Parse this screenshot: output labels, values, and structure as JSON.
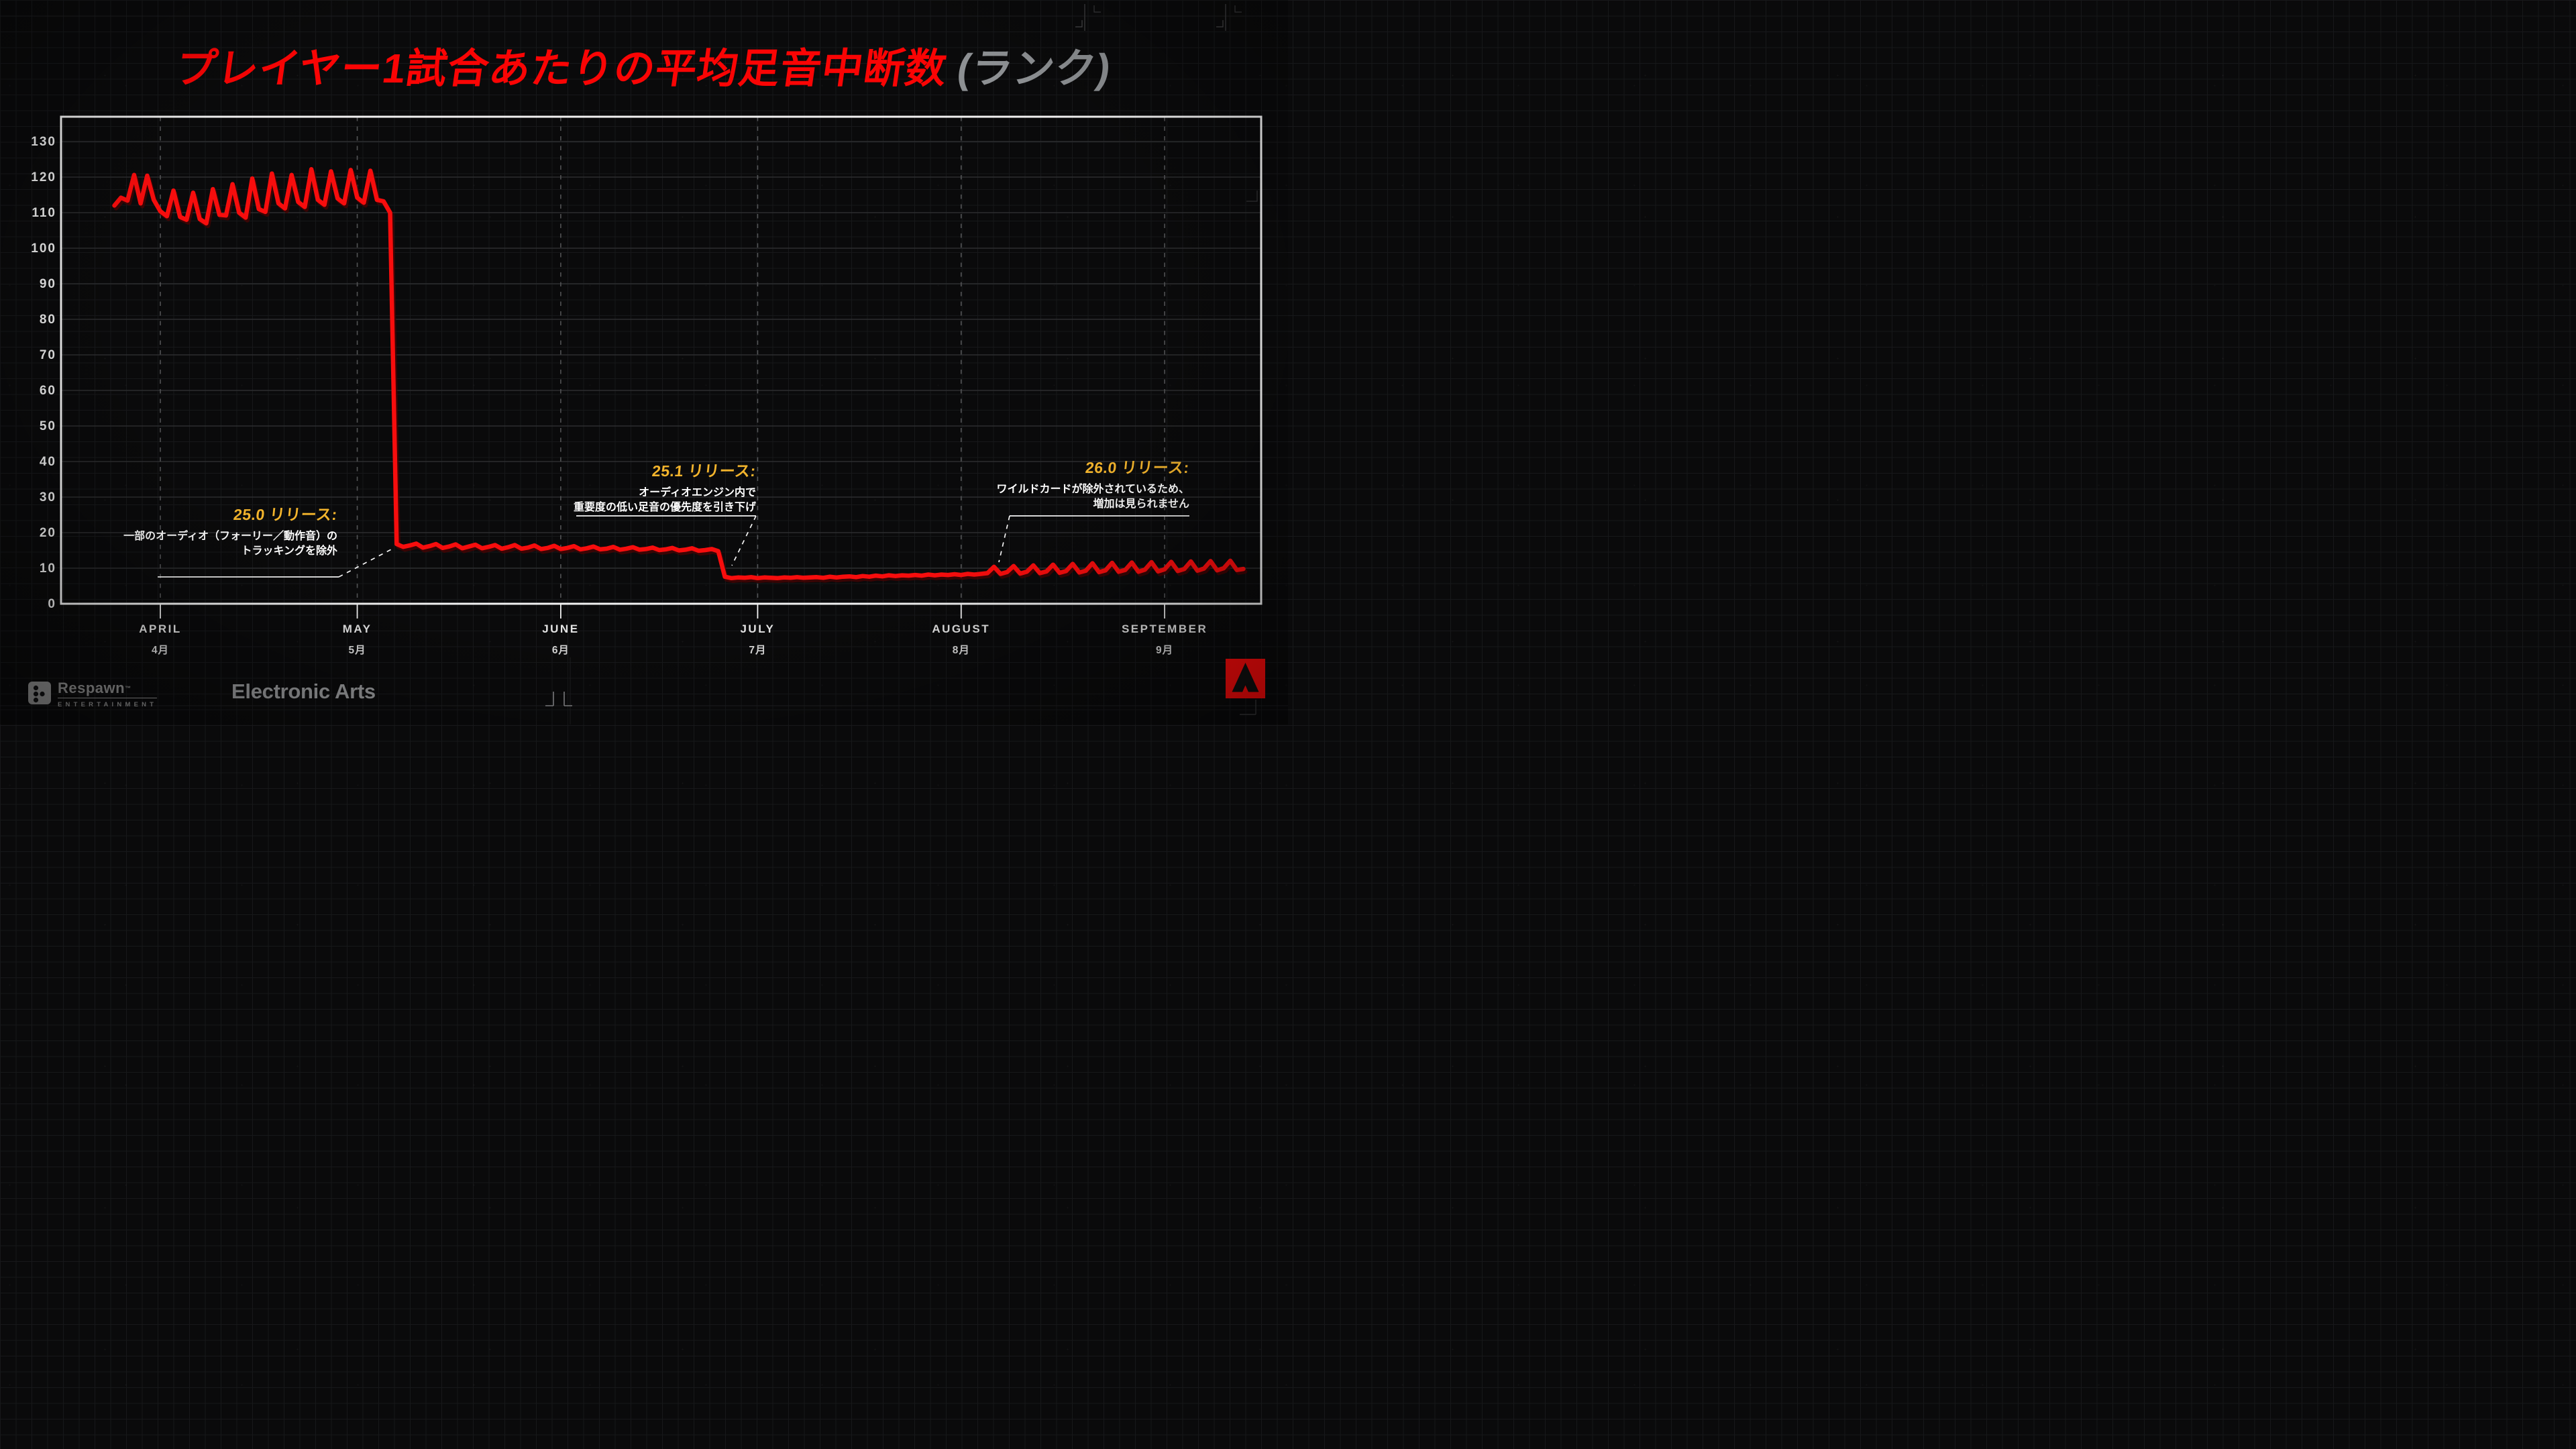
{
  "title": {
    "main": "プレイヤー1試合あたりの平均足音中断数",
    "paren": "(ランク)"
  },
  "annotations": [
    {
      "title": "25.0 リリース:",
      "line1": "一部のオーディオ（フォーリー／動作音）の",
      "line2": "トラッキングを除外"
    },
    {
      "title": "25.1 リリース:",
      "line1": "オーディオエンジン内で",
      "line2": "重要度の低い足音の優先度を引き下げ"
    },
    {
      "title": "26.0 リリース:",
      "line1": "ワイルドカードが除外されているため、",
      "line2": "増加は見られません"
    }
  ],
  "footer": {
    "respawn_name": "Respawn",
    "respawn_tm": "™",
    "respawn_sub": "ENTERTAINMENT",
    "ea_name": "Electronic Arts"
  },
  "colors": {
    "line_red": "#f70d0d",
    "line_shadow": "#4a0303",
    "title_red": "#fa0404",
    "accent_yellow": "#f3b42c",
    "paren_gray": "#8d9093",
    "logo_gray": "#8d8d8d",
    "axis_white": "#f2f2f2",
    "grid_major": "#2c2d2f",
    "grid_dashed": "#525355",
    "apex_red": "#fb0a0a"
  },
  "chart_data": {
    "type": "line",
    "title": "プレイヤー1試合あたりの平均足音中断数 (ランク)",
    "x_unit": "days_since_april_1",
    "ylim": [
      0,
      137
    ],
    "yticks": [
      0,
      10,
      20,
      30,
      40,
      50,
      60,
      70,
      80,
      90,
      100,
      110,
      120,
      130
    ],
    "grid": "horizontal decade lines; dashed vertical month lines; white L/bottom axis frame",
    "legend": "none",
    "months": [
      {
        "en": "APRIL",
        "ja": "4月",
        "day": 0
      },
      {
        "en": "MAY",
        "ja": "5月",
        "day": 30
      },
      {
        "en": "JUNE",
        "ja": "6月",
        "day": 61
      },
      {
        "en": "JULY",
        "ja": "7月",
        "day": 91
      },
      {
        "en": "AUGUST",
        "ja": "8月",
        "day": 122
      },
      {
        "en": "SEPTEMBER",
        "ja": "9月",
        "day": 153
      }
    ],
    "events": [
      {
        "day": 35,
        "label": "25.0 release drop: ~110 → ~17"
      },
      {
        "day": 85,
        "label": "25.1 release drop: ~15 → ~7.5"
      },
      {
        "day": 127,
        "label": "26.0 release: sawtooth begins, no net increase"
      }
    ],
    "series": [
      {
        "name": "平均足音中断数 (ランク)",
        "color": "#f70d0d",
        "points": [
          [
            -7,
            112
          ],
          [
            -6,
            114.2
          ],
          [
            -5,
            113.4
          ],
          [
            -4,
            120.6
          ],
          [
            -3,
            112.6
          ],
          [
            -2,
            120.4
          ],
          [
            -1,
            113.6
          ],
          [
            0,
            110.4
          ],
          [
            1,
            109.0
          ],
          [
            2,
            116.2
          ],
          [
            3,
            108.8
          ],
          [
            4,
            108.0
          ],
          [
            5,
            115.6
          ],
          [
            6,
            108.2
          ],
          [
            7,
            107.0
          ],
          [
            8,
            116.6
          ],
          [
            9,
            109.4
          ],
          [
            10,
            109.2
          ],
          [
            11,
            118.0
          ],
          [
            12,
            110.0
          ],
          [
            13,
            108.6
          ],
          [
            14,
            119.6
          ],
          [
            15,
            111.0
          ],
          [
            16,
            110.2
          ],
          [
            17,
            121.0
          ],
          [
            18,
            112.6
          ],
          [
            19,
            111.2
          ],
          [
            20,
            120.6
          ],
          [
            21,
            113.0
          ],
          [
            22,
            111.6
          ],
          [
            23,
            122.2
          ],
          [
            24,
            113.6
          ],
          [
            25,
            112.2
          ],
          [
            26,
            121.6
          ],
          [
            27,
            114.0
          ],
          [
            28,
            112.6
          ],
          [
            29,
            122.0
          ],
          [
            30,
            114.2
          ],
          [
            31,
            112.8
          ],
          [
            32,
            121.8
          ],
          [
            33,
            113.6
          ],
          [
            34,
            113.2
          ],
          [
            35,
            110.0
          ],
          [
            36,
            16.8
          ],
          [
            37,
            16.0
          ],
          [
            38,
            16.4
          ],
          [
            39,
            16.9
          ],
          [
            40,
            15.8
          ],
          [
            41,
            16.2
          ],
          [
            42,
            16.8
          ],
          [
            43,
            15.7
          ],
          [
            44,
            16.1
          ],
          [
            45,
            16.7
          ],
          [
            46,
            15.6
          ],
          [
            47,
            16.1
          ],
          [
            48,
            16.6
          ],
          [
            49,
            15.6
          ],
          [
            50,
            16.0
          ],
          [
            51,
            16.5
          ],
          [
            52,
            15.5
          ],
          [
            53,
            15.9
          ],
          [
            54,
            16.5
          ],
          [
            55,
            15.5
          ],
          [
            56,
            15.8
          ],
          [
            57,
            16.4
          ],
          [
            58,
            15.4
          ],
          [
            59,
            15.7
          ],
          [
            60,
            16.3
          ],
          [
            61,
            15.4
          ],
          [
            62,
            15.7
          ],
          [
            63,
            16.2
          ],
          [
            64,
            15.3
          ],
          [
            65,
            15.6
          ],
          [
            66,
            16.1
          ],
          [
            67,
            15.3
          ],
          [
            68,
            15.5
          ],
          [
            69,
            16.0
          ],
          [
            70,
            15.2
          ],
          [
            71,
            15.5
          ],
          [
            72,
            15.9
          ],
          [
            73,
            15.2
          ],
          [
            74,
            15.4
          ],
          [
            75,
            15.8
          ],
          [
            76,
            15.1
          ],
          [
            77,
            15.3
          ],
          [
            78,
            15.7
          ],
          [
            79,
            15.0
          ],
          [
            80,
            15.2
          ],
          [
            81,
            15.6
          ],
          [
            82,
            14.9
          ],
          [
            83,
            15.1
          ],
          [
            84,
            15.4
          ],
          [
            85,
            14.8
          ],
          [
            86,
            7.6
          ],
          [
            87,
            7.2
          ],
          [
            88,
            7.4
          ],
          [
            89,
            7.3
          ],
          [
            90,
            7.5
          ],
          [
            91,
            7.2
          ],
          [
            92,
            7.4
          ],
          [
            93,
            7.3
          ],
          [
            94,
            7.2
          ],
          [
            95,
            7.4
          ],
          [
            96,
            7.3
          ],
          [
            97,
            7.5
          ],
          [
            98,
            7.3
          ],
          [
            99,
            7.4
          ],
          [
            100,
            7.5
          ],
          [
            101,
            7.3
          ],
          [
            102,
            7.6
          ],
          [
            103,
            7.4
          ],
          [
            104,
            7.6
          ],
          [
            105,
            7.7
          ],
          [
            106,
            7.5
          ],
          [
            107,
            7.8
          ],
          [
            108,
            7.6
          ],
          [
            109,
            7.9
          ],
          [
            110,
            7.7
          ],
          [
            111,
            8.0
          ],
          [
            112,
            7.8
          ],
          [
            113,
            8.0
          ],
          [
            114,
            7.9
          ],
          [
            115,
            8.1
          ],
          [
            116,
            7.9
          ],
          [
            117,
            8.2
          ],
          [
            118,
            8.0
          ],
          [
            119,
            8.2
          ],
          [
            120,
            8.1
          ],
          [
            121,
            8.3
          ],
          [
            122,
            8.1
          ],
          [
            123,
            8.4
          ],
          [
            124,
            8.2
          ],
          [
            125,
            8.4
          ],
          [
            126,
            8.6
          ],
          [
            127,
            10.4
          ],
          [
            128,
            8.4
          ],
          [
            129,
            8.9
          ],
          [
            130,
            10.6
          ],
          [
            131,
            8.5
          ],
          [
            132,
            9.0
          ],
          [
            133,
            10.8
          ],
          [
            134,
            8.6
          ],
          [
            135,
            9.1
          ],
          [
            136,
            11.0
          ],
          [
            137,
            8.7
          ],
          [
            138,
            9.2
          ],
          [
            139,
            11.2
          ],
          [
            140,
            8.8
          ],
          [
            141,
            9.3
          ],
          [
            142,
            11.4
          ],
          [
            143,
            8.9
          ],
          [
            144,
            9.4
          ],
          [
            145,
            11.5
          ],
          [
            146,
            9.0
          ],
          [
            147,
            9.5
          ],
          [
            148,
            11.6
          ],
          [
            149,
            9.0
          ],
          [
            150,
            9.6
          ],
          [
            151,
            11.7
          ],
          [
            152,
            9.1
          ],
          [
            153,
            9.7
          ],
          [
            154,
            11.8
          ],
          [
            155,
            9.2
          ],
          [
            156,
            9.8
          ],
          [
            157,
            11.9
          ],
          [
            158,
            9.3
          ],
          [
            159,
            9.9
          ],
          [
            160,
            12.0
          ],
          [
            161,
            9.4
          ],
          [
            162,
            10.0
          ],
          [
            163,
            12.1
          ],
          [
            164,
            9.5
          ],
          [
            165,
            9.8
          ]
        ]
      }
    ]
  }
}
